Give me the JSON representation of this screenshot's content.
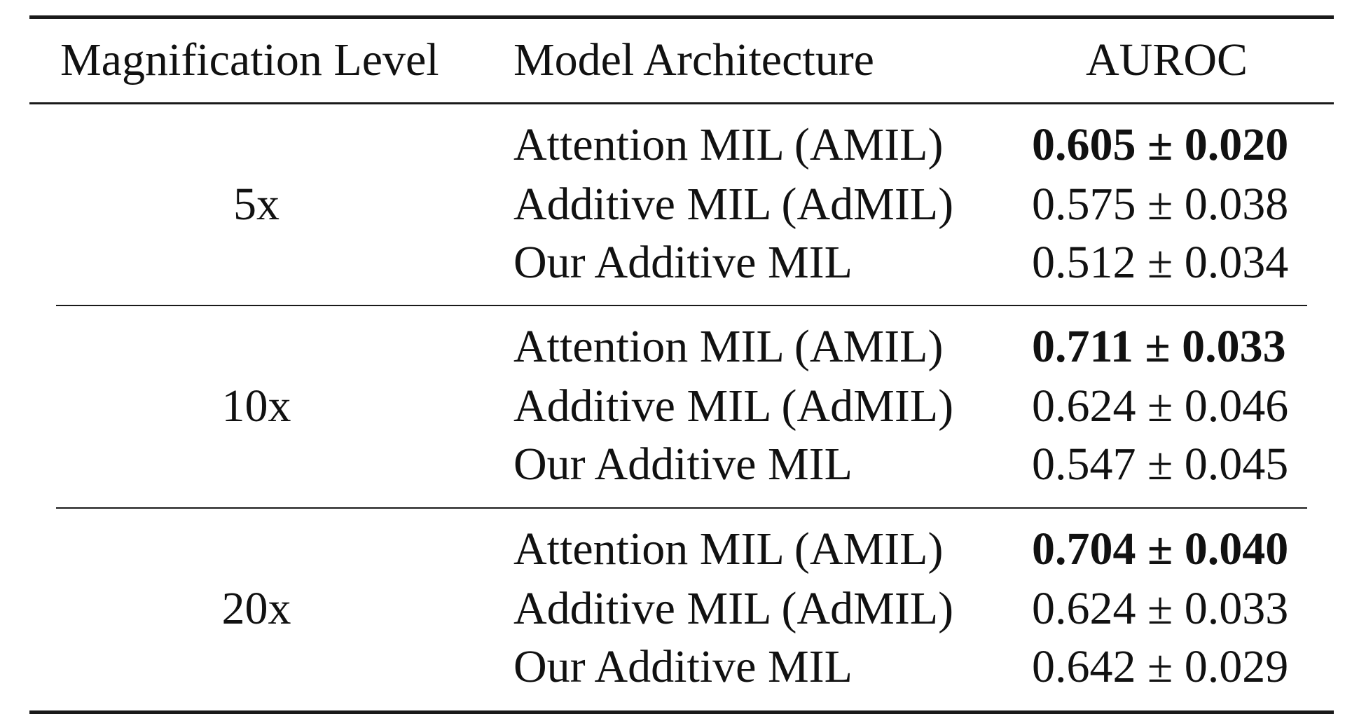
{
  "table": {
    "headers": {
      "magnification": "Magnification Level",
      "model": "Model Architecture",
      "auroc": "AUROC"
    },
    "groups": [
      {
        "magnification": "5x",
        "rows": [
          {
            "model": "Attention MIL (AMIL)",
            "auroc": "0.605 ± 0.020",
            "bold": true
          },
          {
            "model": "Additive MIL (AdMIL)",
            "auroc": "0.575 ± 0.038",
            "bold": false
          },
          {
            "model": "Our Additive MIL",
            "auroc": "0.512 ± 0.034",
            "bold": false
          }
        ]
      },
      {
        "magnification": "10x",
        "rows": [
          {
            "model": "Attention MIL (AMIL)",
            "auroc": "0.711 ± 0.033",
            "bold": true
          },
          {
            "model": "Additive MIL (AdMIL)",
            "auroc": "0.624 ± 0.046",
            "bold": false
          },
          {
            "model": "Our Additive MIL",
            "auroc": "0.547 ± 0.045",
            "bold": false
          }
        ]
      },
      {
        "magnification": "20x",
        "rows": [
          {
            "model": "Attention MIL (AMIL)",
            "auroc": "0.704 ± 0.040",
            "bold": true
          },
          {
            "model": "Additive MIL (AdMIL)",
            "auroc": "0.624 ± 0.033",
            "bold": false
          },
          {
            "model": "Our Additive MIL",
            "auroc": "0.642 ± 0.029",
            "bold": false
          }
        ]
      }
    ]
  }
}
